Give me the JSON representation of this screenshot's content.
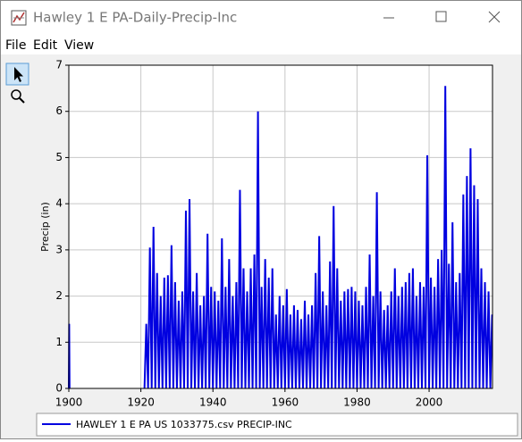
{
  "window": {
    "title": "Hawley 1 E PA-Daily-Precip-Inc",
    "menu": [
      "File",
      "Edit",
      "View"
    ]
  },
  "chart_data": {
    "type": "line",
    "ylabel": "Precip (in)",
    "xlim": [
      1900,
      2017.6
    ],
    "ylim": [
      0,
      7
    ],
    "xticks": [
      1900,
      1920,
      1940,
      1960,
      1980,
      2000
    ],
    "yticks": [
      0,
      1,
      2,
      3,
      4,
      5,
      6,
      7
    ],
    "grid": true,
    "x": [
      1900,
      1900.1,
      1900.2,
      1910,
      1921,
      1921.5,
      1922,
      1922.5,
      1923,
      1923.5,
      1924,
      1924.5,
      1925,
      1925.5,
      1926,
      1926.5,
      1927,
      1927.5,
      1928,
      1928.5,
      1929,
      1929.5,
      1930,
      1930.5,
      1931,
      1931.5,
      1932,
      1932.5,
      1933,
      1933.5,
      1934,
      1934.5,
      1935,
      1935.5,
      1936,
      1936.5,
      1937,
      1937.5,
      1938,
      1938.5,
      1939,
      1939.5,
      1940,
      1940.5,
      1941,
      1941.5,
      1942,
      1942.5,
      1943,
      1943.5,
      1944,
      1944.5,
      1945,
      1945.5,
      1946,
      1946.5,
      1947,
      1947.5,
      1948,
      1948.5,
      1949,
      1949.5,
      1950,
      1950.5,
      1951,
      1951.5,
      1952,
      1952.5,
      1953,
      1953.5,
      1954,
      1954.5,
      1955,
      1955.5,
      1956,
      1956.5,
      1957,
      1957.5,
      1958,
      1958.5,
      1959,
      1959.5,
      1960,
      1960.5,
      1961,
      1961.5,
      1962,
      1962.5,
      1963,
      1963.5,
      1964,
      1964.5,
      1965,
      1965.5,
      1966,
      1966.5,
      1967,
      1967.5,
      1968,
      1968.5,
      1969,
      1969.5,
      1970,
      1970.5,
      1971,
      1971.5,
      1972,
      1972.5,
      1973,
      1973.5,
      1974,
      1974.5,
      1975,
      1975.5,
      1976,
      1976.5,
      1977,
      1977.5,
      1978,
      1978.5,
      1979,
      1979.5,
      1980,
      1980.5,
      1981,
      1981.5,
      1982,
      1982.5,
      1983,
      1983.5,
      1984,
      1984.5,
      1985,
      1985.5,
      1986,
      1986.5,
      1987,
      1987.5,
      1988,
      1988.5,
      1989,
      1989.5,
      1990,
      1990.5,
      1991,
      1991.5,
      1992,
      1992.5,
      1993,
      1993.5,
      1994,
      1994.5,
      1995,
      1995.5,
      1996,
      1996.5,
      1997,
      1997.5,
      1998,
      1998.5,
      1999,
      1999.5,
      2000,
      2000.5,
      2001,
      2001.5,
      2002,
      2002.5,
      2003,
      2003.5,
      2004,
      2004.5,
      2005,
      2005.5,
      2006,
      2006.5,
      2007,
      2007.5,
      2008,
      2008.5,
      2009,
      2009.5,
      2010,
      2010.5,
      2011,
      2011.5,
      2012,
      2012.5,
      2013,
      2013.5,
      2014,
      2014.5,
      2015,
      2015.5,
      2016,
      2016.5,
      2017,
      2017.5
    ],
    "series": [
      {
        "name": "HAWLEY 1 E PA US 1033775.csv PRECIP-INC",
        "color": "#0000e0",
        "values": [
          0,
          1.4,
          0,
          null,
          0,
          1.4,
          0,
          3.05,
          0,
          3.5,
          0,
          2.5,
          0,
          2.0,
          0,
          2.4,
          0,
          2.45,
          0,
          3.1,
          0,
          2.3,
          0,
          1.9,
          0,
          2.1,
          0,
          3.85,
          0,
          4.1,
          0,
          2.1,
          0,
          2.5,
          0,
          1.8,
          0,
          2.0,
          0,
          3.35,
          0,
          2.2,
          0,
          2.1,
          0,
          1.9,
          0,
          3.25,
          0,
          2.2,
          0,
          2.8,
          0,
          2.0,
          0,
          2.3,
          0,
          4.3,
          0,
          2.6,
          0,
          2.1,
          0,
          2.6,
          0,
          2.9,
          0,
          6.0,
          0,
          2.2,
          0,
          2.8,
          0,
          2.4,
          0,
          2.6,
          0,
          1.6,
          0,
          2.0,
          0,
          1.8,
          0,
          2.15,
          0,
          1.6,
          0,
          1.8,
          0,
          1.7,
          0,
          1.5,
          0,
          1.9,
          0,
          1.6,
          0,
          1.8,
          0,
          2.5,
          0,
          3.3,
          0,
          2.1,
          0,
          1.8,
          0,
          2.75,
          0,
          3.95,
          0,
          2.6,
          0,
          1.9,
          0,
          2.1,
          0,
          2.15,
          0,
          2.2,
          0,
          2.1,
          0,
          1.9,
          0,
          1.8,
          0,
          2.2,
          0,
          2.9,
          0,
          2.0,
          0,
          4.25,
          0,
          2.1,
          0,
          1.7,
          0,
          1.8,
          0,
          2.1,
          0,
          2.6,
          0,
          2.0,
          0,
          2.2,
          0,
          2.3,
          0,
          2.5,
          0,
          2.6,
          0,
          2.0,
          0,
          2.3,
          0,
          2.2,
          0,
          5.05,
          0,
          2.4,
          0,
          2.2,
          0,
          2.8,
          0,
          3.0,
          0,
          6.55,
          0,
          2.7,
          0,
          3.6,
          0,
          2.3,
          0,
          2.5,
          0,
          4.2,
          0,
          4.6,
          0,
          5.2,
          0,
          4.4,
          0,
          4.1,
          0,
          2.6,
          0,
          2.3,
          0,
          2.1,
          0,
          1.6
        ]
      }
    ]
  }
}
